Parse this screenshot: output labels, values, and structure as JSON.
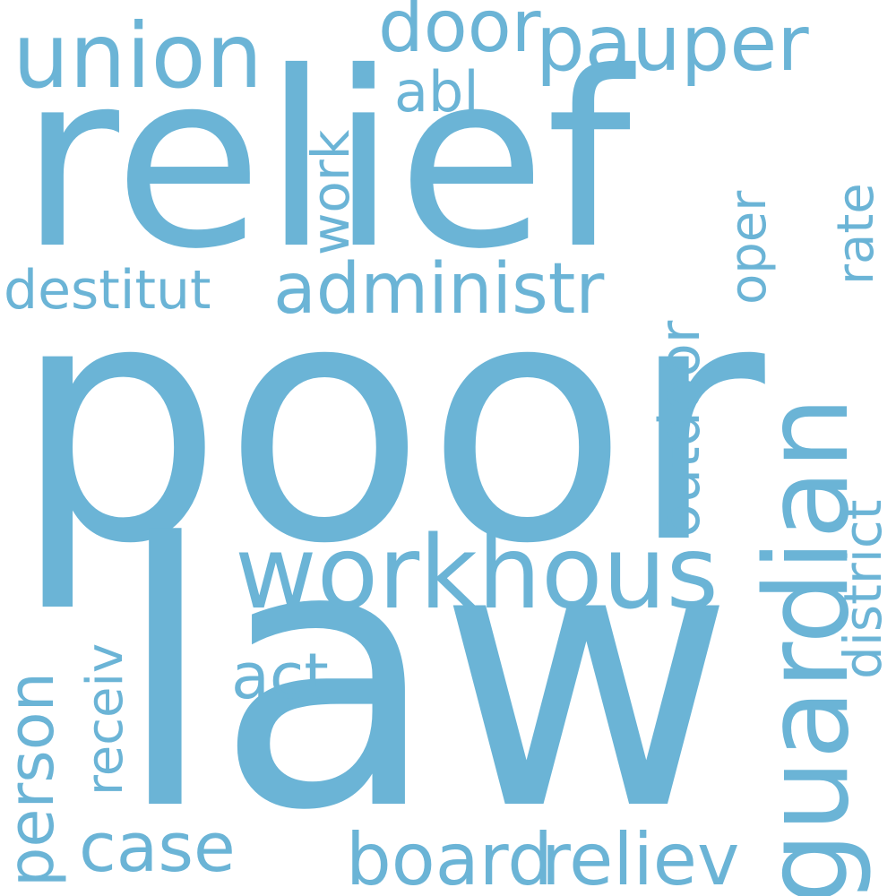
{
  "word_color": "#6bb4d6",
  "background": "#ffffff",
  "words": {
    "poor": "poor",
    "law": "law",
    "relief": "relief",
    "union": "union",
    "workhous": "workhous",
    "guardian": "guardian",
    "pauper": "pauper",
    "door": "door",
    "abl": "abl",
    "work": "work",
    "destitut": "destitut",
    "administr": "administr",
    "oper": "oper",
    "rate": "rate",
    "outdoor": "outdoor",
    "district": "district",
    "person": "person",
    "receiv": "receiv",
    "act": "act",
    "case": "case",
    "board": "board",
    "reliev": "reliev"
  }
}
